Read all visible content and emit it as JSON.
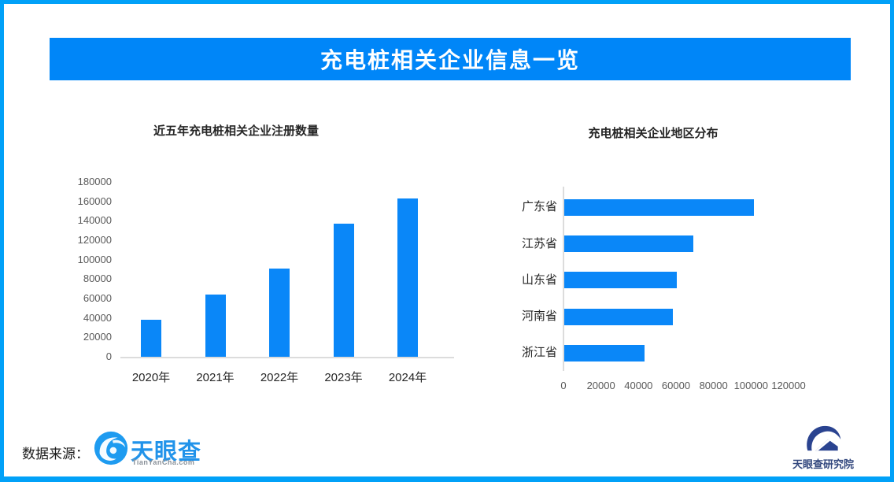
{
  "banner": {
    "title": "充电桩相关企业信息一览"
  },
  "colors": {
    "frame_border": "#01A1F8",
    "banner_bg": "#0086F8",
    "bar_fill": "#0A87F8",
    "axis_line": "#DCDCDC",
    "tick_text": "#595959",
    "tyc_blue": "#2193EA",
    "research_navy": "#33487E"
  },
  "chart_data": [
    {
      "type": "bar",
      "orientation": "vertical",
      "title": "近五年充电桩相关企业注册数量",
      "categories": [
        "2020年",
        "2021年",
        "2022年",
        "2023年",
        "2024年"
      ],
      "values": [
        38000,
        64000,
        91000,
        137000,
        163000
      ],
      "ylabel": "",
      "xlabel": "",
      "ylim": [
        0,
        180000
      ],
      "yticks": [
        0,
        20000,
        40000,
        60000,
        80000,
        100000,
        120000,
        140000,
        160000,
        180000
      ],
      "grid": false,
      "legend": false
    },
    {
      "type": "bar",
      "orientation": "horizontal",
      "title": "充电桩相关企业地区分布",
      "categories": [
        "广东省",
        "江苏省",
        "山东省",
        "河南省",
        "浙江省"
      ],
      "values": [
        101000,
        69000,
        60000,
        58000,
        43000
      ],
      "ylabel": "",
      "xlabel": "",
      "xlim": [
        0,
        120000
      ],
      "xticks": [
        0,
        20000,
        40000,
        60000,
        80000,
        100000,
        120000
      ],
      "grid": false,
      "legend": false
    }
  ],
  "footer": {
    "source_label": "数据来源：",
    "tianyancha": {
      "name": "天眼查",
      "domain": "TianYanCha.com"
    },
    "research": {
      "name": "天眼查研究院"
    }
  }
}
